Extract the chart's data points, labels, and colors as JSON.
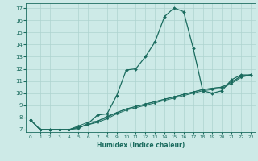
{
  "xlabel": "Humidex (Indice chaleur)",
  "ylabel": "",
  "xlim": [
    -0.5,
    23.5
  ],
  "ylim": [
    6.8,
    17.4
  ],
  "yticks": [
    7,
    8,
    9,
    10,
    11,
    12,
    13,
    14,
    15,
    16,
    17
  ],
  "xticks": [
    0,
    1,
    2,
    3,
    4,
    5,
    6,
    7,
    8,
    9,
    10,
    11,
    12,
    13,
    14,
    15,
    16,
    17,
    18,
    19,
    20,
    21,
    22,
    23
  ],
  "bg_color": "#cdeae7",
  "grid_color": "#aed4d0",
  "line_color": "#1a6b5e",
  "series": [
    [
      7.8,
      7.0,
      7.0,
      7.0,
      7.0,
      7.1,
      7.5,
      8.2,
      8.3,
      9.8,
      11.9,
      12.0,
      13.0,
      14.2,
      16.3,
      17.0,
      16.7,
      13.7,
      10.2,
      10.0,
      10.2,
      11.1,
      11.5,
      11.5
    ],
    [
      7.8,
      7.0,
      7.0,
      7.0,
      7.0,
      7.3,
      7.6,
      7.7,
      8.1,
      8.4,
      8.7,
      8.9,
      9.1,
      9.3,
      9.5,
      9.7,
      9.9,
      10.1,
      10.3,
      10.4,
      10.5,
      10.9,
      11.4,
      11.5
    ],
    [
      7.8,
      7.0,
      7.0,
      7.0,
      7.0,
      7.2,
      7.4,
      7.6,
      7.9,
      8.3,
      8.6,
      8.8,
      9.0,
      9.2,
      9.4,
      9.6,
      9.8,
      10.0,
      10.2,
      10.3,
      10.4,
      10.8,
      11.3,
      11.5
    ],
    [
      7.8,
      7.0,
      7.0,
      7.0,
      7.0,
      7.2,
      7.4,
      7.7,
      8.0,
      8.4,
      8.7,
      8.9,
      9.1,
      9.3,
      9.5,
      9.7,
      9.9,
      10.1,
      10.3,
      10.4,
      10.5,
      10.9,
      11.4,
      11.5
    ]
  ]
}
